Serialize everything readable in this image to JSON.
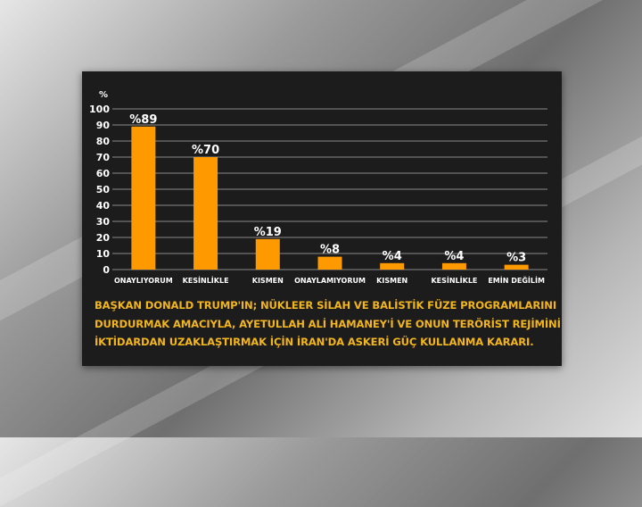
{
  "chart_data": {
    "type": "bar",
    "title": "",
    "xlabel": "",
    "ylabel": "%",
    "ylim": [
      0,
      100
    ],
    "yticks": [
      0,
      10,
      20,
      30,
      40,
      50,
      60,
      70,
      80,
      90,
      100
    ],
    "grid": true,
    "categories": [
      "ONAYLIYORUM",
      "KESİNLİKLE",
      "KISMEN",
      "ONAYLAMIYORUM",
      "KISMEN",
      "KESİNLİKLE",
      "EMİN DEĞİLİM"
    ],
    "values": [
      89,
      70,
      19,
      8,
      4,
      4,
      3
    ],
    "value_labels": [
      "%89",
      "%70",
      "%19",
      "%8",
      "%4",
      "%4",
      "%3"
    ],
    "bar_color": "#ff9900",
    "grid_color": "#8a8a8a",
    "text_color": "#ffffff"
  },
  "caption": {
    "lines": [
      "BAŞKAN DONALD TRUMP'IN; NÜKLEER SİLAH VE BALİSTİK FÜZE PROGRAMLARINI",
      "DURDURMAK AMACIYLA, AYETULLAH ALİ HAMANEY'İ VE ONUN TERÖRİST REJİMİNİ",
      "İKTİDARDAN UZAKLAŞTIRMAK İÇİN İRAN'DA ASKERİ GÜÇ KULLANMA KARARI."
    ],
    "color": "#f2b51e"
  }
}
